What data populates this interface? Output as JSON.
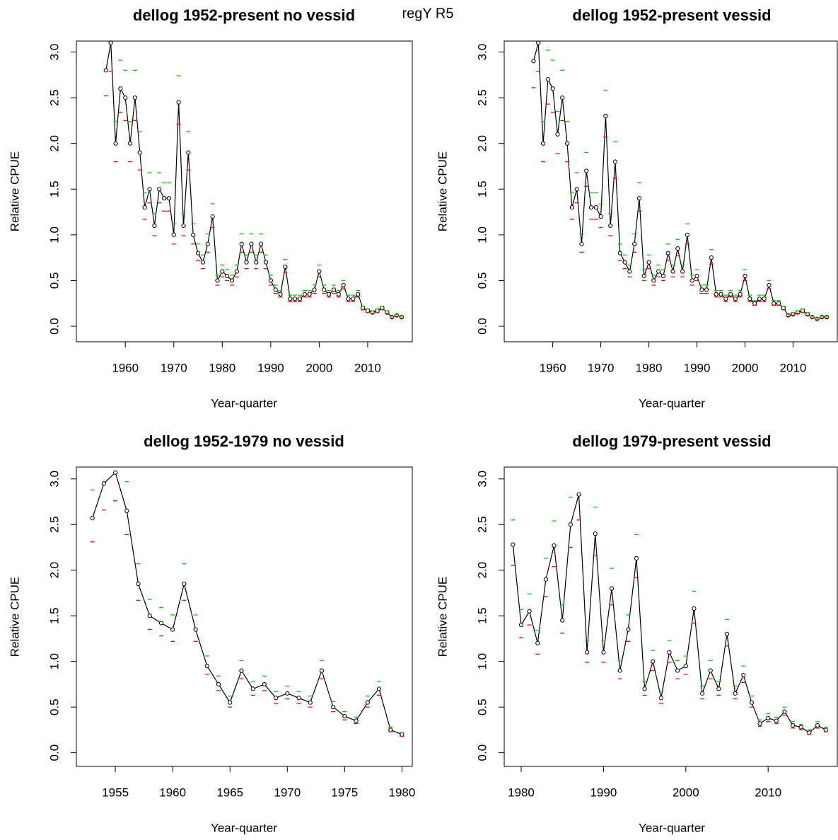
{
  "page_title": "regY R5",
  "chart_data": [
    {
      "type": "line",
      "title": "dellog 1952-present no vessid",
      "x_label": "Year-quarter",
      "y_label": "Relative CPUE",
      "x": [
        1956,
        1957,
        1958,
        1959,
        1960,
        1961,
        1962,
        1963,
        1964,
        1965,
        1966,
        1967,
        1968,
        1969,
        1970,
        1971,
        1972,
        1973,
        1974,
        1975,
        1976,
        1977,
        1978,
        1979,
        1980,
        1981,
        1982,
        1983,
        1984,
        1985,
        1986,
        1987,
        1988,
        1989,
        1990,
        1991,
        1992,
        1993,
        1994,
        1995,
        1996,
        1997,
        1998,
        1999,
        2000,
        2001,
        2002,
        2003,
        2004,
        2005,
        2006,
        2007,
        2008,
        2009,
        2010,
        2011,
        2012,
        2013,
        2014,
        2015,
        2016,
        2017
      ],
      "series": [
        {
          "color": "#000000",
          "marker": "circle",
          "values": [
            2.8,
            3.1,
            2.0,
            2.6,
            2.5,
            2.0,
            2.5,
            1.9,
            1.3,
            1.5,
            1.1,
            1.5,
            1.4,
            1.4,
            1.0,
            2.45,
            1.1,
            1.9,
            1.0,
            0.8,
            0.7,
            0.9,
            1.2,
            0.5,
            0.6,
            0.55,
            0.5,
            0.6,
            0.9,
            0.7,
            0.9,
            0.7,
            0.9,
            0.7,
            0.5,
            0.4,
            0.35,
            0.65,
            0.3,
            0.3,
            0.3,
            0.35,
            0.35,
            0.4,
            0.6,
            0.4,
            0.35,
            0.4,
            0.35,
            0.45,
            0.3,
            0.3,
            0.35,
            0.2,
            0.17,
            0.15,
            0.17,
            0.2,
            0.15,
            0.1,
            0.12,
            0.1
          ]
        },
        {
          "color": "#00cc00",
          "marker": "dash",
          "values": [
            3.14,
            3.47,
            2.24,
            2.91,
            2.8,
            2.24,
            2.8,
            2.13,
            1.46,
            1.68,
            1.23,
            1.68,
            1.57,
            1.57,
            1.12,
            2.74,
            1.23,
            2.13,
            1.12,
            0.9,
            0.78,
            1.01,
            1.34,
            0.56,
            0.67,
            0.62,
            0.56,
            0.67,
            1.01,
            0.78,
            1.01,
            0.78,
            1.01,
            0.78,
            0.56,
            0.45,
            0.39,
            0.73,
            0.34,
            0.34,
            0.34,
            0.39,
            0.39,
            0.45,
            0.67,
            0.45,
            0.39,
            0.45,
            0.39,
            0.5,
            0.34,
            0.34,
            0.39,
            0.22,
            0.19,
            0.17,
            0.19,
            0.22,
            0.17,
            0.11,
            0.13,
            0.11
          ]
        },
        {
          "color": "#ff0000",
          "marker": "dash",
          "values": [
            2.52,
            2.79,
            1.8,
            2.34,
            2.25,
            1.8,
            2.25,
            1.71,
            1.17,
            1.35,
            0.99,
            1.35,
            1.26,
            1.26,
            0.9,
            2.21,
            0.99,
            1.71,
            0.9,
            0.72,
            0.63,
            0.81,
            1.08,
            0.45,
            0.54,
            0.5,
            0.45,
            0.54,
            0.81,
            0.63,
            0.81,
            0.63,
            0.81,
            0.63,
            0.45,
            0.36,
            0.32,
            0.59,
            0.27,
            0.27,
            0.27,
            0.32,
            0.32,
            0.36,
            0.54,
            0.36,
            0.32,
            0.36,
            0.32,
            0.41,
            0.27,
            0.27,
            0.32,
            0.18,
            0.15,
            0.14,
            0.15,
            0.18,
            0.14,
            0.09,
            0.11,
            0.09
          ]
        }
      ],
      "xlim": [
        1949.9,
        2019.2
      ],
      "xticks": [
        1960,
        1970,
        1980,
        1990,
        2000,
        2010
      ],
      "ylim": [
        -0.17,
        3.12
      ],
      "yticks": [
        {
          "value": 0,
          "label": "0.0"
        },
        0.5,
        {
          "value": 1,
          "label": "1.0"
        },
        1.5,
        {
          "value": 2,
          "label": "2.0"
        },
        2.5,
        {
          "value": 3,
          "label": "3.0"
        }
      ]
    },
    {
      "type": "line",
      "title": "dellog 1952-present vessid",
      "x_label": "Year-quarter",
      "y_label": "Relative CPUE",
      "x": [
        1956,
        1957,
        1958,
        1959,
        1960,
        1961,
        1962,
        1963,
        1964,
        1965,
        1966,
        1967,
        1968,
        1969,
        1970,
        1971,
        1972,
        1973,
        1974,
        1975,
        1976,
        1977,
        1978,
        1979,
        1980,
        1981,
        1982,
        1983,
        1984,
        1985,
        1986,
        1987,
        1988,
        1989,
        1990,
        1991,
        1992,
        1993,
        1994,
        1995,
        1996,
        1997,
        1998,
        1999,
        2000,
        2001,
        2002,
        2003,
        2004,
        2005,
        2006,
        2007,
        2008,
        2009,
        2010,
        2011,
        2012,
        2013,
        2014,
        2015,
        2016,
        2017
      ],
      "series": [
        {
          "color": "#000000",
          "marker": "circle",
          "values": [
            2.9,
            3.1,
            2.0,
            2.7,
            2.6,
            2.1,
            2.5,
            2.0,
            1.3,
            1.5,
            0.9,
            1.7,
            1.3,
            1.3,
            1.2,
            2.3,
            1.1,
            1.8,
            0.8,
            0.7,
            0.6,
            0.9,
            1.4,
            0.55,
            0.7,
            0.5,
            0.6,
            0.55,
            0.8,
            0.6,
            0.85,
            0.6,
            1.0,
            0.5,
            0.55,
            0.4,
            0.4,
            0.75,
            0.35,
            0.35,
            0.3,
            0.35,
            0.3,
            0.35,
            0.55,
            0.3,
            0.25,
            0.3,
            0.3,
            0.45,
            0.25,
            0.25,
            0.2,
            0.12,
            0.13,
            0.15,
            0.17,
            0.13,
            0.1,
            0.08,
            0.1,
            0.1
          ]
        },
        {
          "color": "#00cc00",
          "marker": "dash",
          "values": [
            3.25,
            3.47,
            2.24,
            3.02,
            2.91,
            2.35,
            2.8,
            2.24,
            1.46,
            1.68,
            1.01,
            1.9,
            1.46,
            1.46,
            1.34,
            2.58,
            1.23,
            2.02,
            0.9,
            0.78,
            0.67,
            1.01,
            1.57,
            0.62,
            0.78,
            0.56,
            0.67,
            0.62,
            0.9,
            0.67,
            0.95,
            0.67,
            1.12,
            0.56,
            0.62,
            0.45,
            0.45,
            0.84,
            0.39,
            0.39,
            0.34,
            0.39,
            0.34,
            0.39,
            0.62,
            0.34,
            0.28,
            0.34,
            0.34,
            0.5,
            0.28,
            0.28,
            0.22,
            0.13,
            0.15,
            0.17,
            0.19,
            0.15,
            0.11,
            0.09,
            0.11,
            0.11
          ]
        },
        {
          "color": "#ff0000",
          "marker": "dash",
          "values": [
            2.61,
            2.79,
            1.8,
            2.43,
            2.34,
            1.89,
            2.25,
            1.8,
            1.17,
            1.35,
            0.81,
            1.53,
            1.17,
            1.17,
            1.08,
            2.07,
            0.99,
            1.62,
            0.72,
            0.63,
            0.54,
            0.81,
            1.26,
            0.5,
            0.63,
            0.45,
            0.54,
            0.5,
            0.72,
            0.54,
            0.77,
            0.54,
            0.9,
            0.45,
            0.5,
            0.36,
            0.36,
            0.68,
            0.32,
            0.32,
            0.27,
            0.32,
            0.27,
            0.32,
            0.5,
            0.27,
            0.23,
            0.27,
            0.27,
            0.41,
            0.23,
            0.23,
            0.18,
            0.11,
            0.12,
            0.14,
            0.15,
            0.12,
            0.09,
            0.07,
            0.09,
            0.09
          ]
        }
      ],
      "xlim": [
        1949.9,
        2019.2
      ],
      "xticks": [
        1960,
        1970,
        1980,
        1990,
        2000,
        2010
      ],
      "ylim": [
        -0.17,
        3.12
      ],
      "yticks": [
        {
          "value": 0,
          "label": "0.0"
        },
        0.5,
        {
          "value": 1,
          "label": "1.0"
        },
        1.5,
        {
          "value": 2,
          "label": "2.0"
        },
        2.5,
        {
          "value": 3,
          "label": "3.0"
        }
      ]
    },
    {
      "type": "line",
      "title": "dellog 1952-1979 no vessid",
      "x_label": "Year-quarter",
      "y_label": "Relative CPUE",
      "x": [
        1953,
        1954,
        1955,
        1956,
        1957,
        1958,
        1959,
        1960,
        1961,
        1962,
        1963,
        1964,
        1965,
        1966,
        1967,
        1968,
        1969,
        1970,
        1971,
        1972,
        1973,
        1974,
        1975,
        1976,
        1977,
        1978,
        1979,
        1980
      ],
      "series": [
        {
          "color": "#000000",
          "marker": "circle",
          "values": [
            2.57,
            2.95,
            3.07,
            2.65,
            1.85,
            1.5,
            1.42,
            1.35,
            1.85,
            1.35,
            0.95,
            0.75,
            0.55,
            0.9,
            0.7,
            0.75,
            0.6,
            0.65,
            0.6,
            0.55,
            0.9,
            0.5,
            0.4,
            0.35,
            0.55,
            0.7,
            0.25,
            0.2
          ]
        },
        {
          "color": "#00cc00",
          "marker": "dash",
          "values": [
            2.88,
            3.3,
            3.44,
            2.97,
            2.07,
            1.68,
            1.59,
            1.51,
            2.07,
            1.51,
            1.06,
            0.84,
            0.62,
            1.01,
            0.78,
            0.84,
            0.67,
            0.73,
            0.67,
            0.62,
            1.01,
            0.56,
            0.45,
            0.39,
            0.62,
            0.78,
            0.28,
            0.22
          ]
        },
        {
          "color": "#ff0000",
          "marker": "dash",
          "values": [
            2.31,
            2.66,
            2.76,
            2.39,
            1.67,
            1.35,
            1.28,
            1.22,
            1.67,
            1.22,
            0.86,
            0.68,
            0.5,
            0.81,
            0.63,
            0.68,
            0.54,
            0.59,
            0.54,
            0.5,
            0.81,
            0.45,
            0.36,
            0.32,
            0.5,
            0.63,
            0.23,
            0.18
          ]
        }
      ],
      "xlim": [
        1951.6,
        1980.9
      ],
      "xticks": [
        1955,
        1960,
        1965,
        1970,
        1975,
        1980
      ],
      "ylim": [
        -0.15,
        3.13
      ],
      "yticks": [
        {
          "value": 0,
          "label": "0.0"
        },
        0.5,
        {
          "value": 1,
          "label": "1.0"
        },
        1.5,
        {
          "value": 2,
          "label": "2.0"
        },
        2.5,
        {
          "value": 3,
          "label": "3.0"
        }
      ]
    },
    {
      "type": "line",
      "title": "dellog 1979-present vessid",
      "x_label": "Year-quarter",
      "y_label": "Relative CPUE",
      "x": [
        1979,
        1980,
        1981,
        1982,
        1983,
        1984,
        1985,
        1986,
        1987,
        1988,
        1989,
        1990,
        1991,
        1992,
        1993,
        1994,
        1995,
        1996,
        1997,
        1998,
        1999,
        2000,
        2001,
        2002,
        2003,
        2004,
        2005,
        2006,
        2007,
        2008,
        2009,
        2010,
        2011,
        2012,
        2013,
        2014,
        2015,
        2016,
        2017
      ],
      "series": [
        {
          "color": "#000000",
          "marker": "circle",
          "values": [
            2.28,
            1.4,
            1.55,
            1.2,
            1.9,
            2.27,
            1.45,
            2.5,
            2.83,
            1.1,
            2.4,
            1.1,
            1.8,
            0.9,
            1.35,
            2.13,
            0.7,
            1.0,
            0.6,
            1.1,
            0.9,
            0.95,
            1.58,
            0.65,
            0.9,
            0.7,
            1.3,
            0.65,
            0.85,
            0.55,
            0.32,
            0.38,
            0.35,
            0.45,
            0.3,
            0.28,
            0.22,
            0.3,
            0.25
          ]
        },
        {
          "color": "#00cc00",
          "marker": "dash",
          "values": [
            2.55,
            1.57,
            1.74,
            1.34,
            2.13,
            2.54,
            1.62,
            2.8,
            3.17,
            1.23,
            2.69,
            1.23,
            2.02,
            1.01,
            1.51,
            2.39,
            0.78,
            1.12,
            0.67,
            1.23,
            1.01,
            1.06,
            1.77,
            0.73,
            1.01,
            0.78,
            1.46,
            0.73,
            0.95,
            0.62,
            0.36,
            0.43,
            0.39,
            0.5,
            0.34,
            0.31,
            0.25,
            0.34,
            0.28
          ]
        },
        {
          "color": "#ff0000",
          "marker": "dash",
          "values": [
            2.05,
            1.26,
            1.4,
            1.08,
            1.71,
            2.04,
            1.31,
            2.25,
            2.55,
            0.99,
            2.16,
            0.99,
            1.62,
            0.81,
            1.22,
            1.92,
            0.63,
            0.9,
            0.54,
            0.99,
            0.81,
            0.86,
            1.42,
            0.59,
            0.81,
            0.63,
            1.17,
            0.59,
            0.77,
            0.5,
            0.29,
            0.34,
            0.32,
            0.41,
            0.27,
            0.25,
            0.2,
            0.27,
            0.23
          ]
        }
      ],
      "xlim": [
        1977.94,
        2018.4
      ],
      "xticks": [
        1980,
        1990,
        2000,
        2010
      ],
      "ylim": [
        -0.15,
        3.13
      ],
      "yticks": [
        {
          "value": 0,
          "label": "0.0"
        },
        0.5,
        {
          "value": 1,
          "label": "1.0"
        },
        1.5,
        {
          "value": 2,
          "label": "2.0"
        },
        2.5,
        {
          "value": 3,
          "label": "3.0"
        }
      ]
    }
  ]
}
